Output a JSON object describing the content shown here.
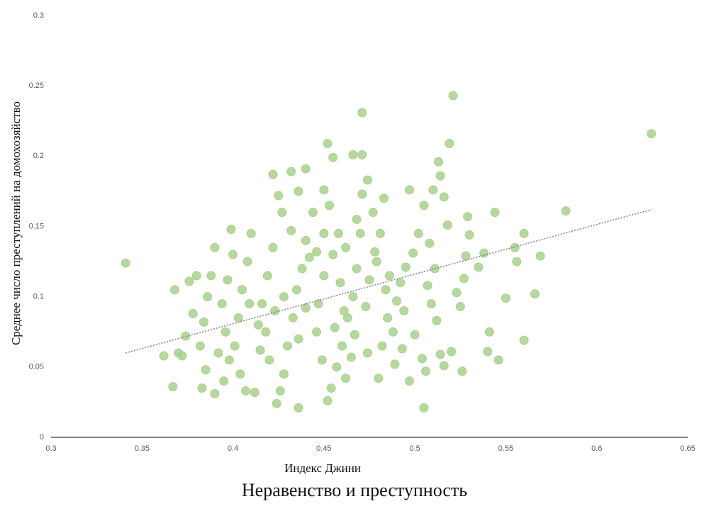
{
  "chart_data": {
    "type": "scatter",
    "title": "Неравенство и преступность",
    "x_label": "Индекс Джини",
    "y_label": "Среднее число преступлений на домохозяйство",
    "color": "#a9d18e",
    "xlim": [
      0.3,
      0.65
    ],
    "xticks": [
      0.3,
      0.35,
      0.4,
      0.45,
      0.5,
      0.55,
      0.6,
      0.65
    ],
    "ylim": [
      0,
      0.3
    ],
    "yticks": [
      0,
      0.05,
      0.1,
      0.15,
      0.2,
      0.25,
      0.3
    ],
    "x": [
      0.341,
      0.63,
      0.521,
      0.471,
      0.583,
      0.566,
      0.569,
      0.436,
      0.505,
      0.367,
      0.362,
      0.368,
      0.452,
      0.466,
      0.471,
      0.519,
      0.513,
      0.422,
      0.432,
      0.44,
      0.56,
      0.56,
      0.544,
      0.546,
      0.55,
      0.556,
      0.555,
      0.541,
      0.54,
      0.535,
      0.538,
      0.53,
      0.529,
      0.526,
      0.52,
      0.516,
      0.514,
      0.512,
      0.523,
      0.525,
      0.527,
      0.528,
      0.518,
      0.516,
      0.514,
      0.51,
      0.505,
      0.497,
      0.502,
      0.499,
      0.495,
      0.492,
      0.49,
      0.488,
      0.489,
      0.493,
      0.5,
      0.504,
      0.506,
      0.48,
      0.482,
      0.485,
      0.484,
      0.479,
      0.481,
      0.477,
      0.483,
      0.471,
      0.47,
      0.468,
      0.466,
      0.463,
      0.46,
      0.457,
      0.462,
      0.454,
      0.452,
      0.449,
      0.446,
      0.447,
      0.45,
      0.455,
      0.458,
      0.453,
      0.45,
      0.444,
      0.44,
      0.438,
      0.435,
      0.433,
      0.43,
      0.428,
      0.426,
      0.424,
      0.42,
      0.418,
      0.416,
      0.419,
      0.422,
      0.425,
      0.427,
      0.41,
      0.408,
      0.405,
      0.403,
      0.401,
      0.404,
      0.407,
      0.398,
      0.396,
      0.394,
      0.397,
      0.4,
      0.399,
      0.39,
      0.388,
      0.386,
      0.384,
      0.382,
      0.385,
      0.383,
      0.378,
      0.38,
      0.376,
      0.374,
      0.372,
      0.37,
      0.39,
      0.395,
      0.412,
      0.415,
      0.432,
      0.442,
      0.446,
      0.459,
      0.461,
      0.467,
      0.473,
      0.475,
      0.478,
      0.486,
      0.494,
      0.497,
      0.508,
      0.507,
      0.509,
      0.511,
      0.474,
      0.465,
      0.456,
      0.44,
      0.436,
      0.428,
      0.423,
      0.414,
      0.409,
      0.392,
      0.436,
      0.455,
      0.45,
      0.462,
      0.468,
      0.474
    ],
    "values": [
      0.124,
      0.216,
      0.243,
      0.231,
      0.161,
      0.102,
      0.129,
      0.021,
      0.021,
      0.036,
      0.058,
      0.105,
      0.209,
      0.201,
      0.201,
      0.209,
      0.196,
      0.187,
      0.189,
      0.191,
      0.145,
      0.069,
      0.16,
      0.055,
      0.099,
      0.125,
      0.135,
      0.075,
      0.061,
      0.121,
      0.131,
      0.144,
      0.157,
      0.047,
      0.061,
      0.051,
      0.059,
      0.083,
      0.103,
      0.093,
      0.113,
      0.129,
      0.151,
      0.171,
      0.186,
      0.176,
      0.165,
      0.176,
      0.145,
      0.131,
      0.121,
      0.11,
      0.097,
      0.075,
      0.052,
      0.063,
      0.073,
      0.056,
      0.047,
      0.042,
      0.065,
      0.085,
      0.105,
      0.125,
      0.145,
      0.16,
      0.17,
      0.173,
      0.145,
      0.12,
      0.1,
      0.085,
      0.065,
      0.05,
      0.042,
      0.035,
      0.026,
      0.055,
      0.075,
      0.095,
      0.115,
      0.13,
      0.145,
      0.165,
      0.176,
      0.16,
      0.14,
      0.12,
      0.105,
      0.085,
      0.065,
      0.045,
      0.033,
      0.024,
      0.055,
      0.075,
      0.095,
      0.115,
      0.135,
      0.172,
      0.16,
      0.145,
      0.125,
      0.105,
      0.085,
      0.065,
      0.045,
      0.033,
      0.055,
      0.075,
      0.095,
      0.112,
      0.13,
      0.148,
      0.135,
      0.115,
      0.1,
      0.082,
      0.065,
      0.048,
      0.035,
      0.088,
      0.115,
      0.111,
      0.072,
      0.058,
      0.06,
      0.031,
      0.04,
      0.032,
      0.062,
      0.147,
      0.128,
      0.132,
      0.11,
      0.09,
      0.073,
      0.093,
      0.112,
      0.132,
      0.115,
      0.09,
      0.04,
      0.138,
      0.108,
      0.095,
      0.12,
      0.06,
      0.057,
      0.078,
      0.092,
      0.07,
      0.1,
      0.09,
      0.08,
      0.095,
      0.06,
      0.175,
      0.199,
      0.145,
      0.135,
      0.155,
      0.183
    ],
    "trendline": {
      "x": [
        0.341,
        0.63
      ],
      "y": [
        0.06,
        0.162
      ],
      "color": "#808080"
    }
  }
}
